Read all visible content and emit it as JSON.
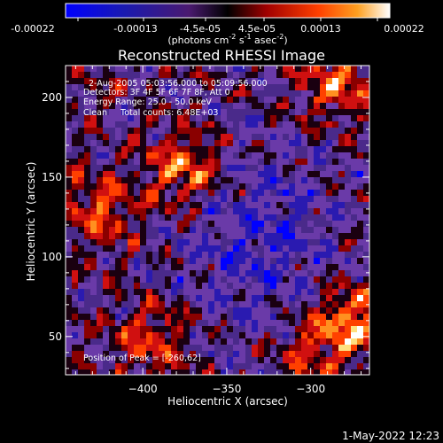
{
  "colors": {
    "background": "#000000",
    "foreground": "#ffffff",
    "colormap": [
      "#0000ff",
      "#2a1ab0",
      "#4a2a8a",
      "#6a3aa8",
      "#1a0010",
      "#8a0000",
      "#d01010",
      "#ff4000",
      "#ff9020",
      "#ffe080",
      "#ffffff"
    ]
  },
  "colorbar": {
    "ticks": [
      "-0.00022",
      "-0.00013",
      "-4.5e-05",
      "4.5e-05",
      "0.00013",
      "0.00022"
    ],
    "units_main": "(photons cm",
    "units_exp1": "-2",
    "units_mid": " s",
    "units_exp2": "-1",
    "units_tail": " asec",
    "units_exp3": "-2",
    "units_close": ")"
  },
  "plot": {
    "title": "Reconstructed RHESSI Image",
    "info_lines": [
      "2-Aug-2005 05:03:56.000 to 05:09:56.000",
      "Detectors: 3F 4F 5F 6F 7F 8F, Att 0",
      "Energy Range: 25.0 - 50.0 keV",
      "Clean     Total counts: 6.48E+03"
    ],
    "peak_label": "Position of Peak = [-260,62]"
  },
  "timestamp": "1-May-2022 12:23",
  "chart_data": {
    "type": "heatmap",
    "title": "Reconstructed RHESSI Image",
    "xlabel": "Heliocentric X (arcsec)",
    "ylabel": "Heliocentric Y (arcsec)",
    "xlim": [
      -446,
      -265
    ],
    "ylim": [
      26,
      220
    ],
    "x_ticks": [
      -400,
      -350,
      -300
    ],
    "y_ticks": [
      50,
      100,
      150,
      200
    ],
    "x_tick_labels": [
      "−400",
      "−350",
      "−300"
    ],
    "y_tick_labels": [
      "50",
      "100",
      "150",
      "200"
    ],
    "colorbar_range": [
      -0.00022,
      0.00022
    ],
    "peak_position": [
      -260,
      62
    ],
    "hot_regions": [
      {
        "x": -375,
        "y": 155,
        "value": 0.0002
      },
      {
        "x": -275,
        "y": 60,
        "value": 0.00022
      },
      {
        "x": -283,
        "y": 210,
        "value": 0.00018
      },
      {
        "x": -425,
        "y": 130,
        "value": 0.00015
      },
      {
        "x": -395,
        "y": 48,
        "value": 0.00014
      },
      {
        "x": -300,
        "y": 40,
        "value": 0.00012
      }
    ]
  }
}
